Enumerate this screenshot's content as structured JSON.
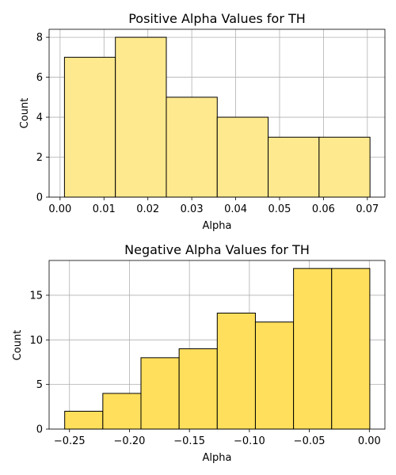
{
  "chart_data": [
    {
      "type": "bar",
      "title": "Positive Alpha Values for TH",
      "xlabel": "Alpha",
      "ylabel": "Count",
      "bin_edges": [
        0.001,
        0.0126,
        0.0242,
        0.0358,
        0.0474,
        0.059,
        0.0706
      ],
      "values": [
        7,
        8,
        5,
        4,
        3,
        3
      ],
      "xlim": [
        -0.0025,
        0.074
      ],
      "ylim": [
        0,
        8.4
      ],
      "xticks": [
        0.0,
        0.01,
        0.02,
        0.03,
        0.04,
        0.05,
        0.06,
        0.07
      ],
      "xtick_labels": [
        "0.00",
        "0.01",
        "0.02",
        "0.03",
        "0.04",
        "0.05",
        "0.06",
        "0.07"
      ],
      "yticks": [
        0,
        2,
        4,
        6,
        8
      ],
      "ytick_labels": [
        "0",
        "2",
        "4",
        "6",
        "8"
      ],
      "grid": true,
      "bar_color": "#ffe98f"
    },
    {
      "type": "bar",
      "title": "Negative Alpha Values for TH",
      "xlabel": "Alpha",
      "ylabel": "Count",
      "bin_edges": [
        -0.254,
        -0.2222,
        -0.1904,
        -0.1586,
        -0.1268,
        -0.095,
        -0.0632,
        -0.0314,
        0.0004
      ],
      "values": [
        2,
        4,
        8,
        9,
        13,
        12,
        18,
        18
      ],
      "xlim": [
        -0.267,
        0.013
      ],
      "ylim": [
        0,
        18.9
      ],
      "xticks": [
        -0.25,
        -0.2,
        -0.15,
        -0.1,
        -0.05,
        0.0
      ],
      "xtick_labels": [
        "−0.25",
        "−0.20",
        "−0.15",
        "−0.10",
        "−0.05",
        "0.00"
      ],
      "yticks": [
        0,
        5,
        10,
        15
      ],
      "ytick_labels": [
        "0",
        "5",
        "10",
        "15"
      ],
      "grid": true,
      "bar_color": "#ffdf5c"
    }
  ]
}
